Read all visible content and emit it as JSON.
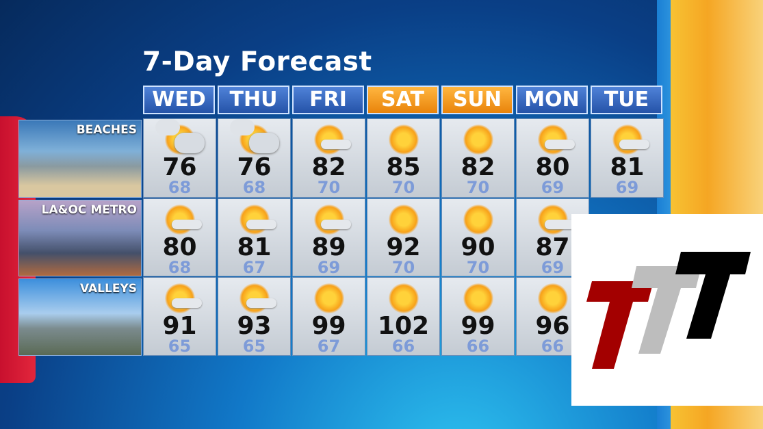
{
  "title": "7-Day Forecast",
  "days": [
    {
      "label": "WED",
      "weekend": false
    },
    {
      "label": "THU",
      "weekend": false
    },
    {
      "label": "FRI",
      "weekend": false
    },
    {
      "label": "SAT",
      "weekend": true
    },
    {
      "label": "SUN",
      "weekend": true
    },
    {
      "label": "MON",
      "weekend": false
    },
    {
      "label": "TUE",
      "weekend": false
    }
  ],
  "colors": {
    "weekday_header": "#3a6cc4",
    "weekend_header": "#f39a1e",
    "low_temp": "#7d9bd8"
  },
  "regions": [
    {
      "name": "BEACHES",
      "icons": [
        "partly-cloudy-icon",
        "partly-cloudy-icon",
        "hazy-sun-icon",
        "sun-icon",
        "sun-icon",
        "hazy-sun-icon",
        "hazy-sun-icon"
      ],
      "highs": [
        "76",
        "76",
        "82",
        "85",
        "82",
        "80",
        "81"
      ],
      "lows": [
        "68",
        "68",
        "70",
        "70",
        "70",
        "69",
        "69"
      ]
    },
    {
      "name": "LA&OC METRO",
      "icons": [
        "hazy-sun-icon",
        "hazy-sun-icon",
        "hazy-sun-icon",
        "sun-icon",
        "sun-icon",
        "hazy-sun-icon",
        "hazy-sun-icon"
      ],
      "highs": [
        "80",
        "81",
        "89",
        "92",
        "90",
        "87",
        ""
      ],
      "lows": [
        "68",
        "67",
        "69",
        "70",
        "70",
        "69",
        ""
      ]
    },
    {
      "name": "VALLEYS",
      "icons": [
        "hazy-sun-icon",
        "hazy-sun-icon",
        "sun-icon",
        "sun-icon",
        "sun-icon",
        "sun-icon",
        "sun-icon"
      ],
      "highs": [
        "91",
        "93",
        "99",
        "102",
        "99",
        "96",
        ""
      ],
      "lows": [
        "65",
        "65",
        "67",
        "66",
        "66",
        "66",
        ""
      ]
    }
  ],
  "logo": {
    "text": "TTT",
    "colors": [
      "#a30000",
      "#bdbdbd",
      "#000000"
    ]
  }
}
